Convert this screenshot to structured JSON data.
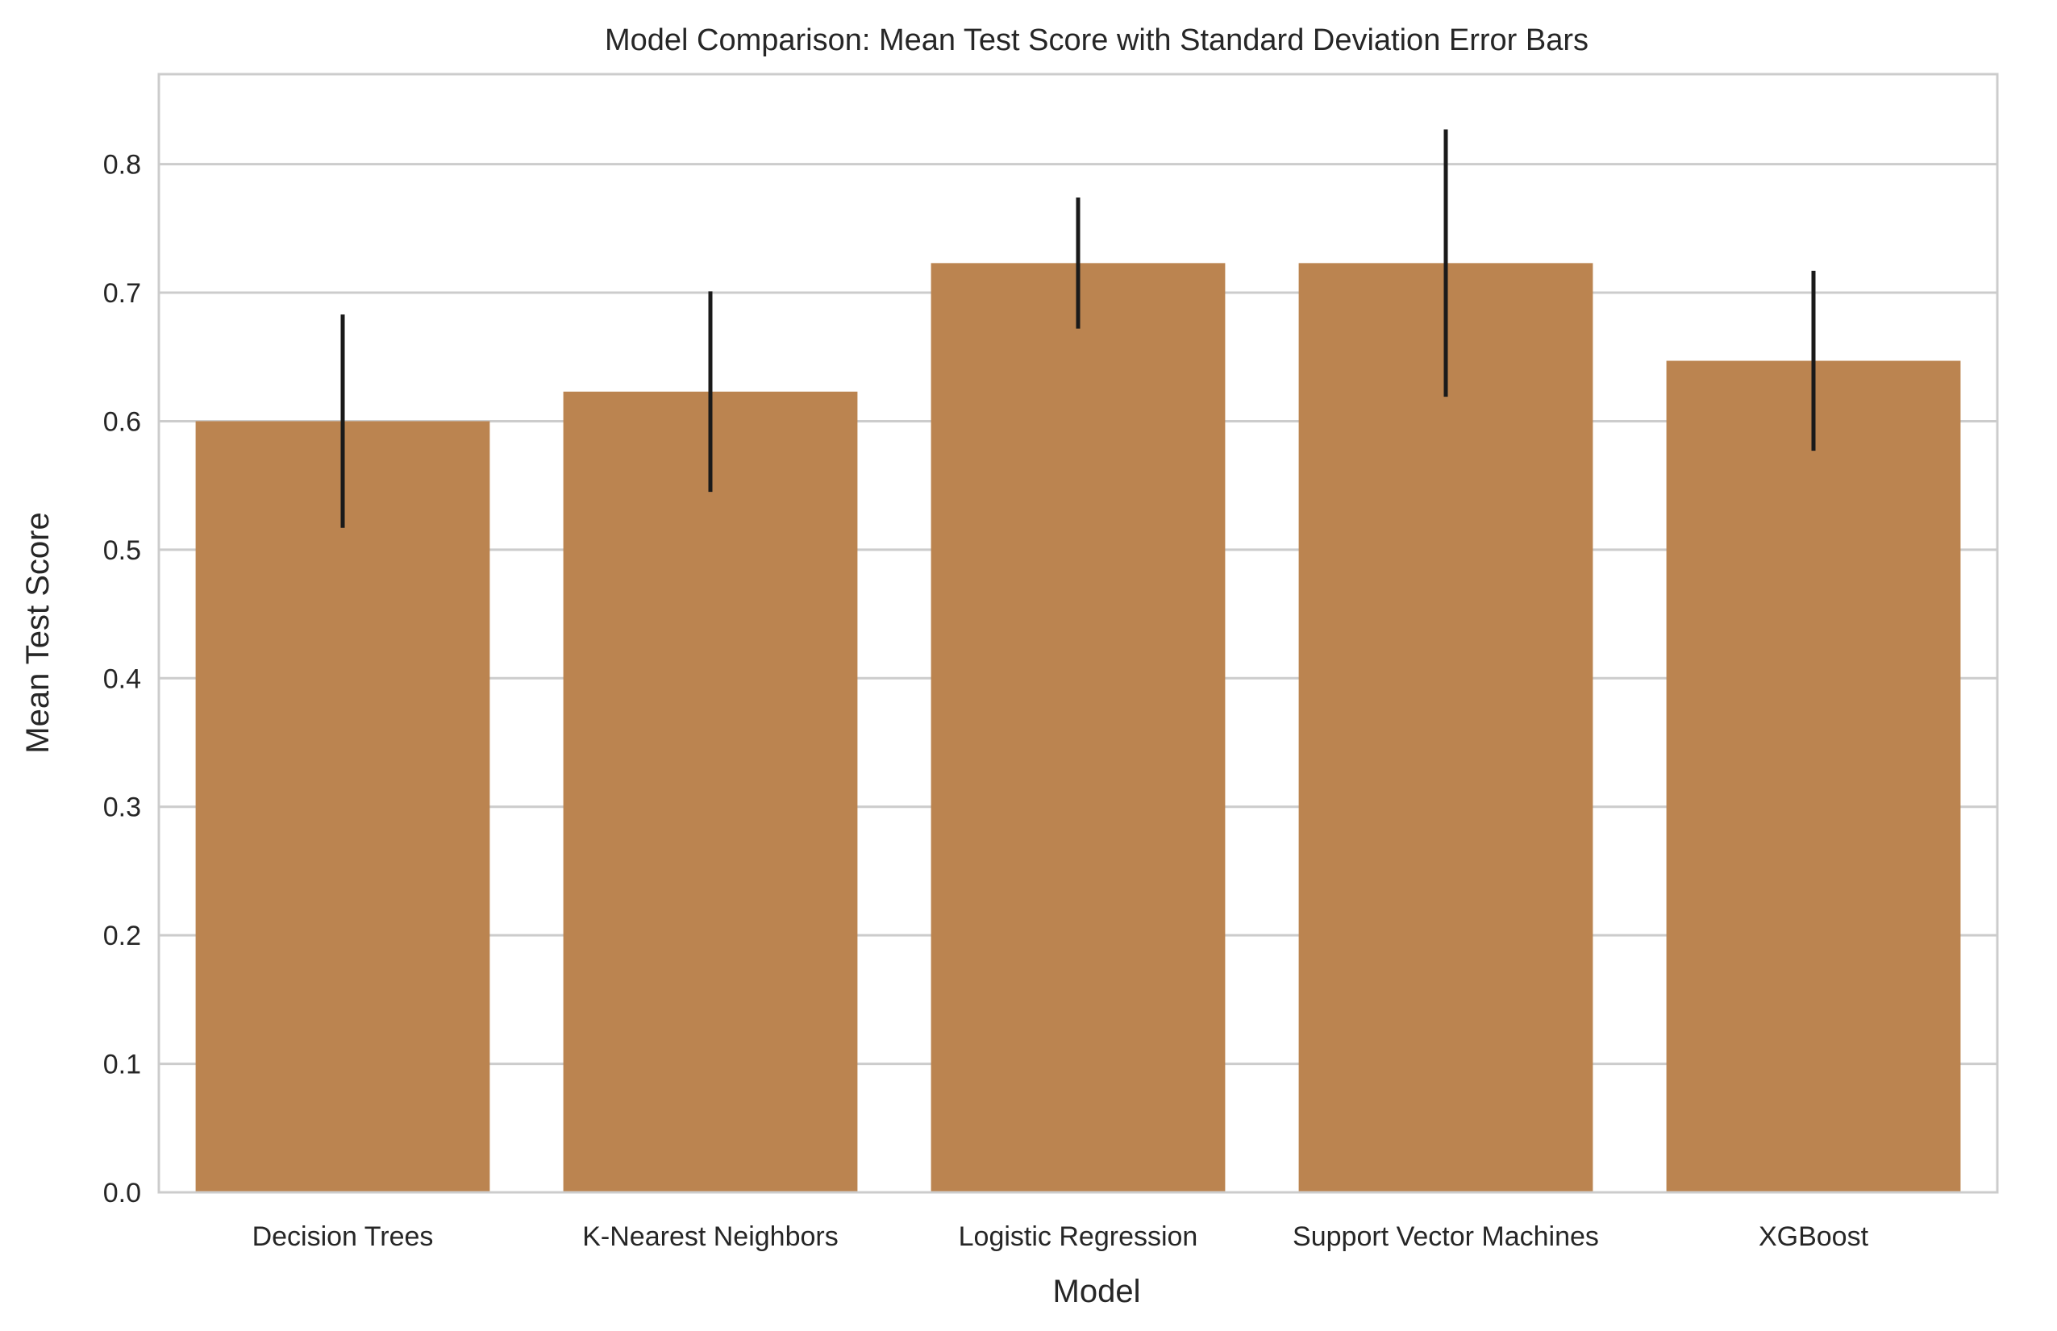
{
  "chart_data": {
    "type": "bar",
    "title": "Model Comparison: Mean Test Score with Standard Deviation Error Bars",
    "xlabel": "Model",
    "ylabel": "Mean Test Score",
    "categories": [
      "Decision Trees",
      "K-Nearest Neighbors",
      "Logistic Regression",
      "Support Vector Machines",
      "XGBoost"
    ],
    "values": [
      0.6,
      0.623,
      0.723,
      0.723,
      0.647
    ],
    "error": [
      0.083,
      0.078,
      0.051,
      0.104,
      0.07
    ],
    "ylim": [
      0,
      0.87
    ],
    "yticks": [
      "0.0",
      "0.1",
      "0.2",
      "0.3",
      "0.4",
      "0.5",
      "0.6",
      "0.7",
      "0.8"
    ],
    "grid": true,
    "legend": "none",
    "colors": {
      "bar": "#bb8450",
      "errorbar": "#1a1a1a",
      "ylabel": "#c8804a",
      "grid": "#cccccc",
      "frame": "#cccccc"
    }
  }
}
